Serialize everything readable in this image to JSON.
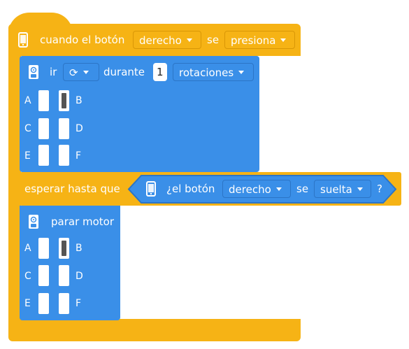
{
  "hat": {
    "text_when": "cuando el botón",
    "button_dropdown": "derecho",
    "text_se": "se",
    "action_dropdown": "presiona"
  },
  "go_block": {
    "text_ir": "ir",
    "direction_dropdown": "⟳",
    "text_durante": "durante",
    "amount_value": "1",
    "unit_dropdown": "rotaciones",
    "ports": [
      "A",
      "B",
      "C",
      "D",
      "E",
      "F"
    ]
  },
  "wait_block": {
    "text_wait": "esperar hasta que",
    "cond_text_button": "¿el botón",
    "cond_button_dropdown": "derecho",
    "cond_text_se": "se",
    "cond_action_dropdown": "suelta",
    "cond_question": "?"
  },
  "stop_block": {
    "text_stop": "parar motor",
    "ports": [
      "A",
      "B",
      "C",
      "D",
      "E",
      "F"
    ]
  },
  "colors": {
    "hat": "#F6B315",
    "motor": "#3A8FE8",
    "condition": "#3A8FE8"
  }
}
